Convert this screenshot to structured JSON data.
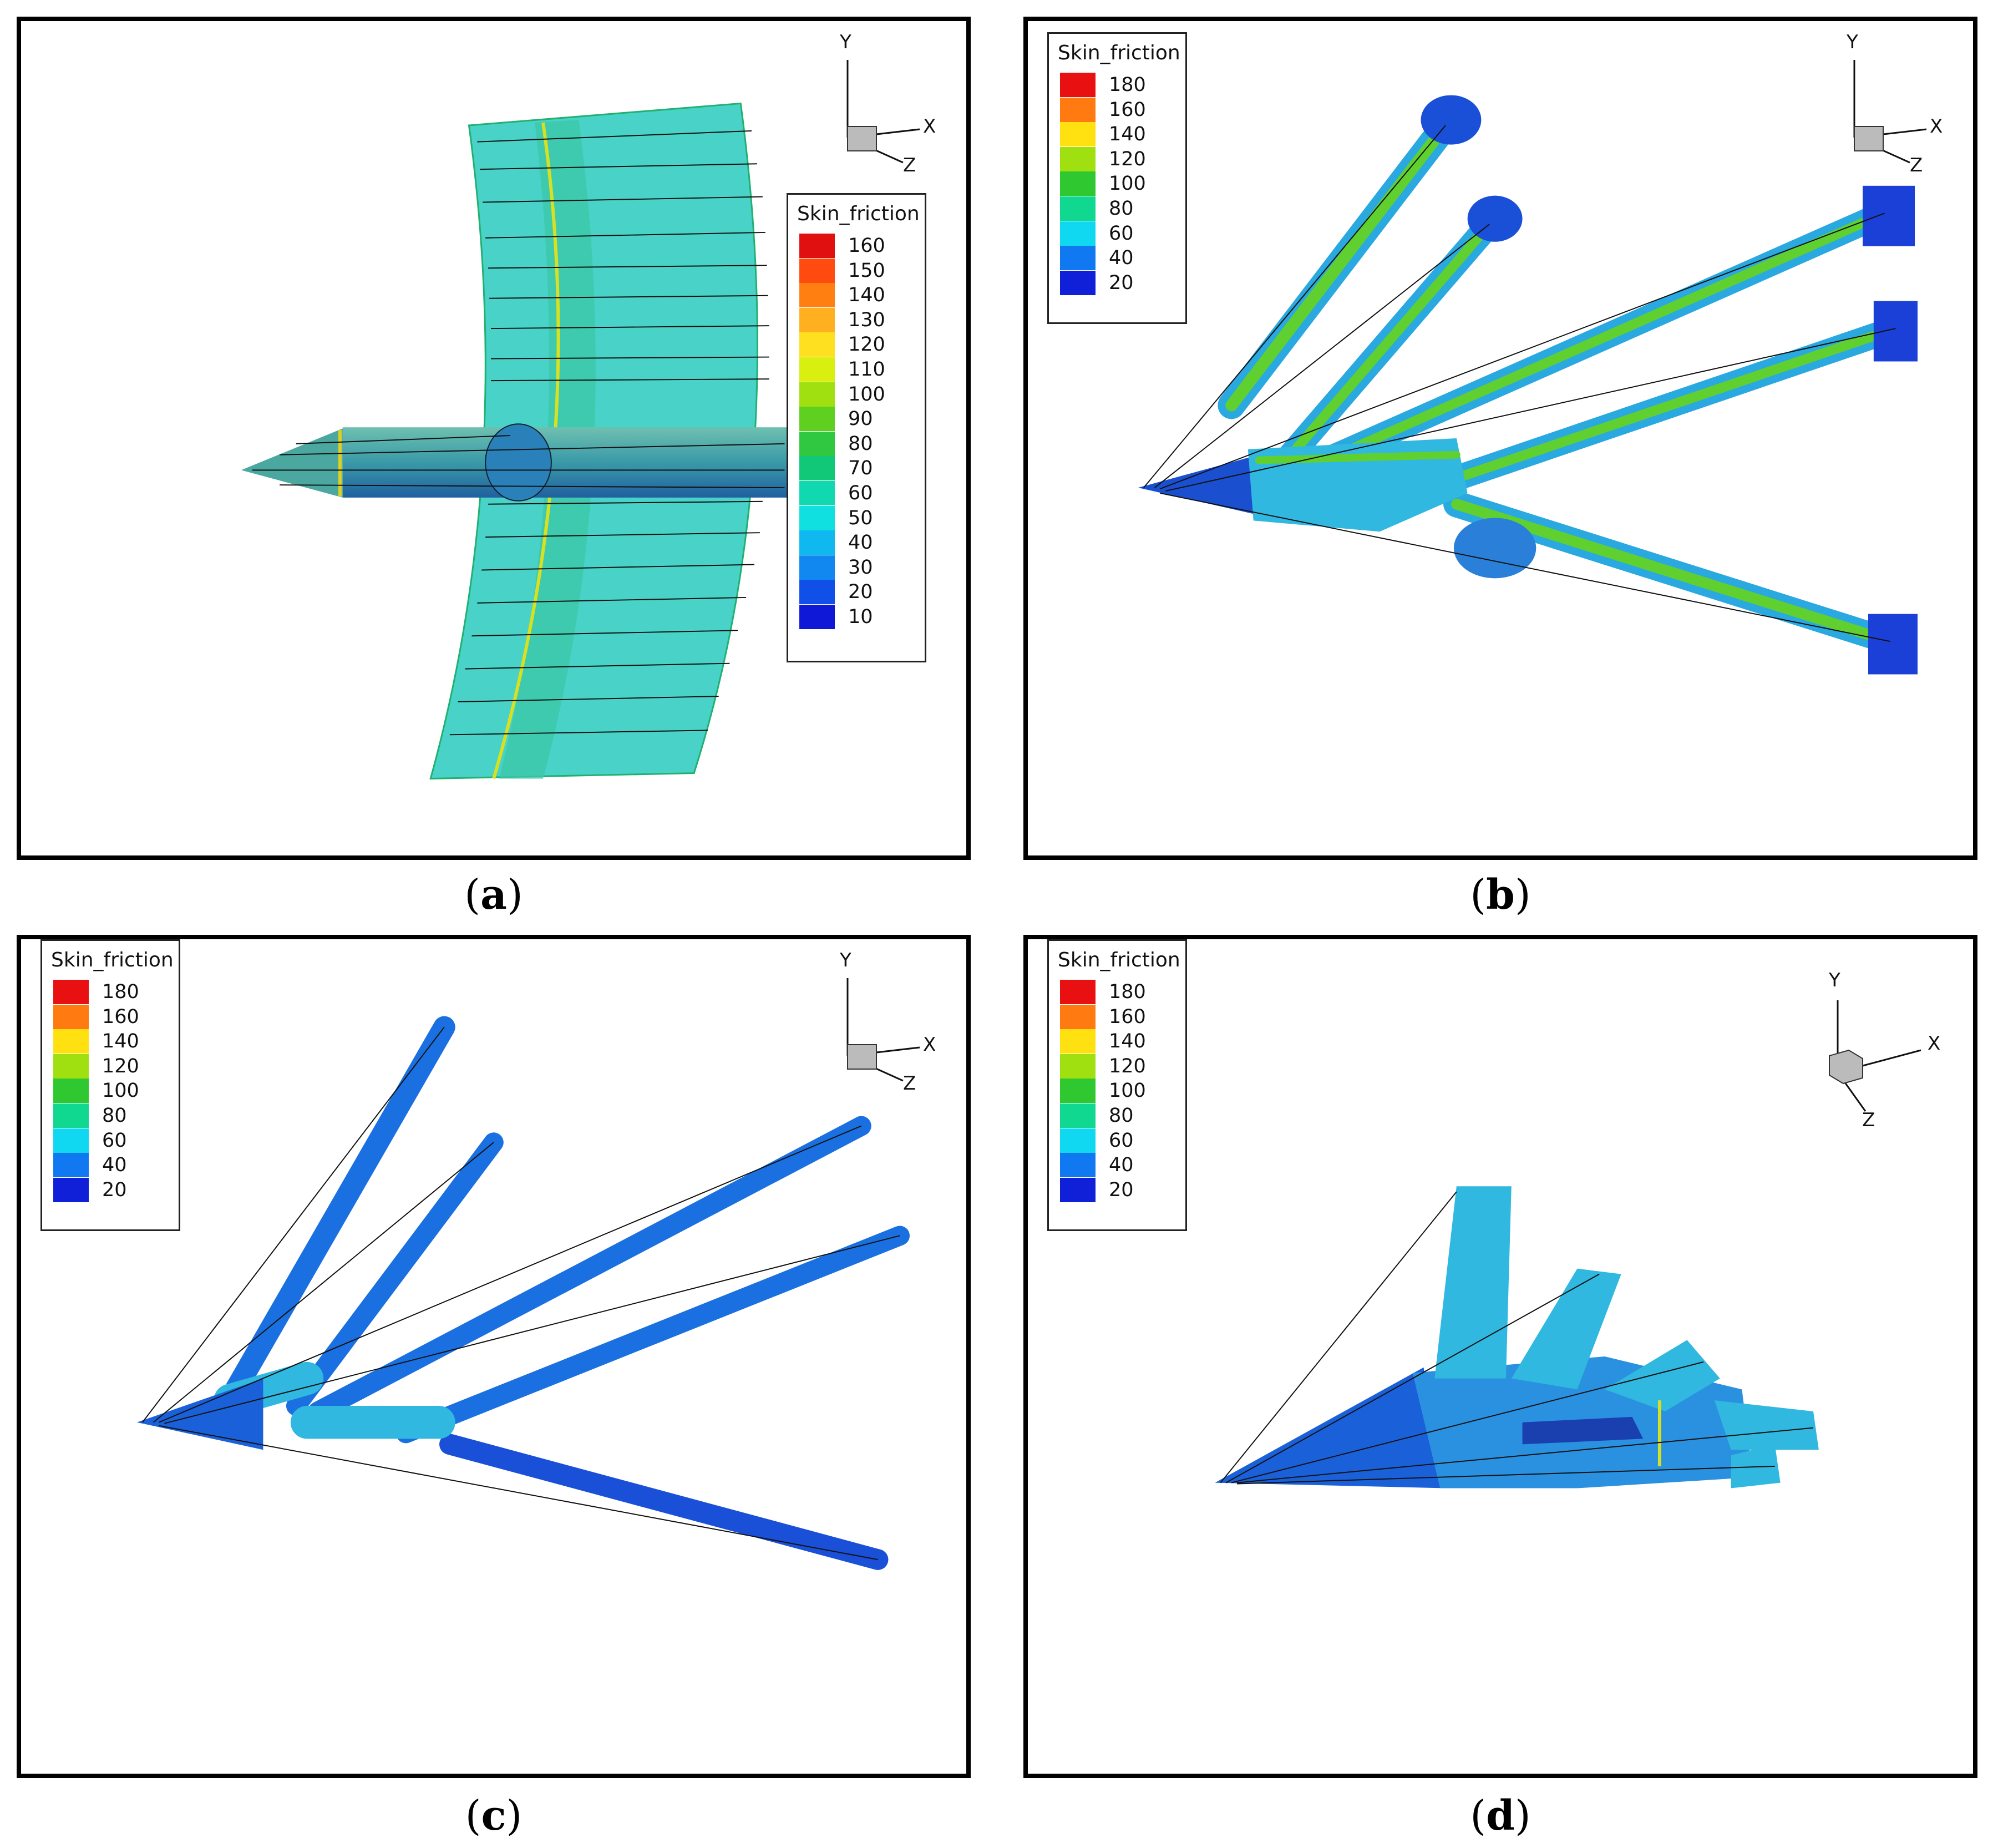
{
  "panels": [
    {
      "id": "a",
      "caption_label": "a",
      "legend_title": "Skin_friction",
      "legend_levels": [
        "160",
        "150",
        "140",
        "130",
        "120",
        "110",
        "100",
        "90",
        "80",
        "70",
        "60",
        "50",
        "40",
        "30",
        "20",
        "10"
      ],
      "legend_colors": [
        "#e01010",
        "#ff4a10",
        "#ff7f10",
        "#ffb020",
        "#ffe020",
        "#d8ef10",
        "#a0e010",
        "#60d020",
        "#30c840",
        "#10c878",
        "#10d8b0",
        "#10e0e0",
        "#10b8f0",
        "#1088f0",
        "#1050e8",
        "#1018d8"
      ],
      "axis_labels": {
        "y": "Y",
        "x": "X",
        "z": "Z"
      }
    },
    {
      "id": "b",
      "caption_label": "b",
      "legend_title": "Skin_friction",
      "legend_levels": [
        "180",
        "160",
        "140",
        "120",
        "100",
        "80",
        "60",
        "40",
        "20"
      ],
      "legend_colors": [
        "#e81010",
        "#ff7a10",
        "#ffe010",
        "#a0e010",
        "#30c830",
        "#10d890",
        "#10d8f0",
        "#1078f0",
        "#1020d8"
      ],
      "axis_labels": {
        "y": "Y",
        "x": "X",
        "z": "Z"
      }
    },
    {
      "id": "c",
      "caption_label": "c",
      "legend_title": "Skin_friction",
      "legend_levels": [
        "180",
        "160",
        "140",
        "120",
        "100",
        "80",
        "60",
        "40",
        "20"
      ],
      "legend_colors": [
        "#e81010",
        "#ff7a10",
        "#ffe010",
        "#a0e010",
        "#30c830",
        "#10d890",
        "#10d8f0",
        "#1078f0",
        "#1020d8"
      ],
      "axis_labels": {
        "y": "Y",
        "x": "X",
        "z": "Z"
      }
    },
    {
      "id": "d",
      "caption_label": "d",
      "legend_title": "Skin_friction",
      "legend_levels": [
        "180",
        "160",
        "140",
        "120",
        "100",
        "80",
        "60",
        "40",
        "20"
      ],
      "legend_colors": [
        "#e81010",
        "#ff7a10",
        "#ffe010",
        "#a0e010",
        "#30c830",
        "#10d890",
        "#10d8f0",
        "#1078f0",
        "#1020d8"
      ],
      "axis_labels": {
        "y": "Y",
        "x": "X",
        "z": "Z"
      }
    }
  ]
}
